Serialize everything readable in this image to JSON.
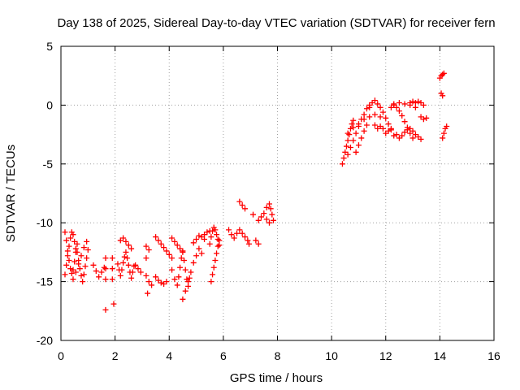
{
  "chart_data": {
    "type": "scatter",
    "title": "Day 138 of 2025, Sidereal Day-to-day VTEC variation (SDTVAR) for receiver fern",
    "xlabel": "GPS time / hours",
    "ylabel": "SDTVAR / TECUs",
    "xlim": [
      0,
      16
    ],
    "ylim": [
      -20,
      5
    ],
    "xticks": [
      "0",
      "2",
      "4",
      "6",
      "8",
      "10",
      "12",
      "14",
      "16"
    ],
    "yticks": [
      "5",
      "0",
      "-5",
      "-10",
      "-15",
      "-20"
    ],
    "grid": true,
    "marker": "+",
    "color": "#ff0000",
    "series": [
      {
        "points": [
          [
            0.15,
            -10.8
          ],
          [
            0.2,
            -11.5
          ],
          [
            0.25,
            -12.4
          ],
          [
            0.3,
            -13.2
          ],
          [
            0.35,
            -13.9
          ],
          [
            0.4,
            -14.3
          ],
          [
            0.45,
            -14.0
          ],
          [
            0.5,
            -13.3
          ],
          [
            0.55,
            -12.5
          ],
          [
            0.6,
            -11.8
          ],
          [
            0.15,
            -14.4
          ],
          [
            0.2,
            -13.6
          ],
          [
            0.25,
            -12.8
          ],
          [
            0.3,
            -12.0
          ],
          [
            0.35,
            -11.3
          ],
          [
            0.4,
            -10.8
          ],
          [
            0.45,
            -11.0
          ],
          [
            0.5,
            -11.6
          ],
          [
            0.55,
            -12.2
          ],
          [
            0.6,
            -12.5
          ],
          [
            0.65,
            -13.2
          ],
          [
            0.7,
            -13.9
          ],
          [
            0.75,
            -14.5
          ],
          [
            0.8,
            -15.0
          ],
          [
            0.85,
            -14.4
          ],
          [
            0.9,
            -13.7
          ],
          [
            0.95,
            -13.0
          ],
          [
            1.0,
            -12.3
          ],
          [
            0.45,
            -14.8
          ],
          [
            0.55,
            -14.2
          ],
          [
            0.65,
            -13.5
          ],
          [
            0.75,
            -12.8
          ],
          [
            0.85,
            -12.1
          ],
          [
            0.95,
            -11.6
          ],
          [
            1.2,
            -13.6
          ],
          [
            1.3,
            -14.1
          ],
          [
            1.4,
            -14.6
          ],
          [
            1.5,
            -14.2
          ],
          [
            1.6,
            -13.8
          ],
          [
            1.65,
            -13.0
          ],
          [
            1.65,
            -13.9
          ],
          [
            1.65,
            -14.8
          ],
          [
            1.9,
            -13.0
          ],
          [
            1.9,
            -13.9
          ],
          [
            1.9,
            -14.8
          ],
          [
            1.65,
            -17.4
          ],
          [
            1.95,
            -16.9
          ],
          [
            2.1,
            -13.5
          ],
          [
            2.15,
            -14.0
          ],
          [
            2.2,
            -14.5
          ],
          [
            2.25,
            -14.0
          ],
          [
            2.3,
            -13.4
          ],
          [
            2.35,
            -12.9
          ],
          [
            2.4,
            -12.5
          ],
          [
            2.45,
            -13.0
          ],
          [
            2.5,
            -13.6
          ],
          [
            2.55,
            -14.2
          ],
          [
            2.6,
            -14.7
          ],
          [
            2.65,
            -14.2
          ],
          [
            2.7,
            -13.7
          ],
          [
            2.2,
            -11.5
          ],
          [
            2.3,
            -11.3
          ],
          [
            2.4,
            -11.6
          ],
          [
            2.5,
            -11.9
          ],
          [
            2.6,
            -12.2
          ],
          [
            2.75,
            -13.6
          ],
          [
            2.85,
            -13.9
          ],
          [
            2.95,
            -14.2
          ],
          [
            3.15,
            -12.0
          ],
          [
            3.25,
            -12.3
          ],
          [
            3.15,
            -13.0
          ],
          [
            3.15,
            -14.5
          ],
          [
            3.25,
            -15.0
          ],
          [
            3.2,
            -16.0
          ],
          [
            3.35,
            -15.3
          ],
          [
            3.5,
            -11.2
          ],
          [
            3.6,
            -11.5
          ],
          [
            3.7,
            -11.8
          ],
          [
            3.8,
            -12.1
          ],
          [
            3.9,
            -12.4
          ],
          [
            4.0,
            -12.7
          ],
          [
            4.1,
            -13.0
          ],
          [
            3.5,
            -14.6
          ],
          [
            3.6,
            -14.9
          ],
          [
            3.7,
            -15.1
          ],
          [
            3.8,
            -15.2
          ],
          [
            3.9,
            -15.0
          ],
          [
            4.1,
            -14.0
          ],
          [
            4.2,
            -14.8
          ],
          [
            4.3,
            -15.3
          ],
          [
            4.35,
            -14.6
          ],
          [
            4.4,
            -13.8
          ],
          [
            4.45,
            -13.0
          ],
          [
            4.5,
            -12.4
          ],
          [
            4.55,
            -13.2
          ],
          [
            4.6,
            -14.0
          ],
          [
            4.65,
            -14.8
          ],
          [
            4.7,
            -15.4
          ],
          [
            4.75,
            -14.7
          ],
          [
            4.1,
            -11.3
          ],
          [
            4.2,
            -11.6
          ],
          [
            4.3,
            -11.9
          ],
          [
            4.4,
            -12.2
          ],
          [
            4.5,
            -12.5
          ],
          [
            4.5,
            -16.5
          ],
          [
            4.6,
            -15.8
          ],
          [
            4.7,
            -15.0
          ],
          [
            4.8,
            -14.2
          ],
          [
            4.9,
            -13.4
          ],
          [
            5.0,
            -12.8
          ],
          [
            5.1,
            -12.2
          ],
          [
            5.2,
            -12.6
          ],
          [
            4.9,
            -11.7
          ],
          [
            5.0,
            -11.4
          ],
          [
            5.1,
            -11.1
          ],
          [
            5.2,
            -11.2
          ],
          [
            5.3,
            -11.4
          ],
          [
            5.5,
            -11.8
          ],
          [
            5.55,
            -11.2
          ],
          [
            5.6,
            -10.7
          ],
          [
            5.65,
            -10.4
          ],
          [
            5.7,
            -10.6
          ],
          [
            5.75,
            -11.0
          ],
          [
            5.8,
            -11.4
          ],
          [
            5.85,
            -11.9
          ],
          [
            5.3,
            -11.0
          ],
          [
            5.4,
            -10.8
          ],
          [
            5.5,
            -10.7
          ],
          [
            5.55,
            -15.0
          ],
          [
            5.6,
            -14.4
          ],
          [
            5.65,
            -13.8
          ],
          [
            5.7,
            -13.2
          ],
          [
            5.75,
            -12.6
          ],
          [
            5.8,
            -12.0
          ],
          [
            5.85,
            -11.5
          ],
          [
            6.2,
            -10.6
          ],
          [
            6.3,
            -11.0
          ],
          [
            6.4,
            -11.3
          ],
          [
            6.5,
            -10.9
          ],
          [
            6.6,
            -10.6
          ],
          [
            6.7,
            -10.9
          ],
          [
            6.8,
            -11.2
          ],
          [
            6.9,
            -11.5
          ],
          [
            6.95,
            -11.8
          ],
          [
            6.6,
            -8.2
          ],
          [
            6.7,
            -8.5
          ],
          [
            6.8,
            -8.8
          ],
          [
            7.1,
            -9.3
          ],
          [
            7.3,
            -9.8
          ],
          [
            7.2,
            -11.5
          ],
          [
            7.3,
            -11.8
          ],
          [
            7.4,
            -9.5
          ],
          [
            7.5,
            -9.2
          ],
          [
            7.6,
            -8.7
          ],
          [
            7.7,
            -8.4
          ],
          [
            7.75,
            -8.8
          ],
          [
            7.8,
            -9.3
          ],
          [
            7.85,
            -9.8
          ],
          [
            7.6,
            -9.7
          ],
          [
            7.7,
            -10.0
          ]
        ]
      },
      {
        "points": [
          [
            10.4,
            -5.0
          ],
          [
            10.45,
            -4.5
          ],
          [
            10.5,
            -4.0
          ],
          [
            10.55,
            -3.5
          ],
          [
            10.6,
            -3.0
          ],
          [
            10.65,
            -2.5
          ],
          [
            10.7,
            -2.0
          ],
          [
            10.75,
            -1.6
          ],
          [
            10.8,
            -1.3
          ],
          [
            10.6,
            -4.2
          ],
          [
            10.7,
            -3.6
          ],
          [
            10.8,
            -3.0
          ],
          [
            10.9,
            -2.4
          ],
          [
            11.0,
            -1.8
          ],
          [
            11.1,
            -1.2
          ],
          [
            11.2,
            -0.8
          ],
          [
            11.3,
            -0.3
          ],
          [
            11.4,
            0.0
          ],
          [
            10.9,
            -4.0
          ],
          [
            11.0,
            -3.4
          ],
          [
            11.1,
            -2.8
          ],
          [
            11.2,
            -2.2
          ],
          [
            11.3,
            -1.7
          ],
          [
            10.6,
            -2.4
          ],
          [
            10.8,
            -1.9
          ],
          [
            11.0,
            -1.6
          ],
          [
            11.2,
            -1.2
          ],
          [
            11.4,
            -1.0
          ],
          [
            11.6,
            -0.8
          ],
          [
            11.8,
            -1.0
          ],
          [
            11.4,
            -0.2
          ],
          [
            11.5,
            0.2
          ],
          [
            11.6,
            0.4
          ],
          [
            11.7,
            0.1
          ],
          [
            11.8,
            -0.2
          ],
          [
            11.9,
            -0.6
          ],
          [
            12.0,
            -1.1
          ],
          [
            12.1,
            -1.6
          ],
          [
            12.2,
            -2.1
          ],
          [
            12.3,
            -2.6
          ],
          [
            11.9,
            -2.0
          ],
          [
            12.0,
            -2.4
          ],
          [
            12.1,
            -2.2
          ],
          [
            12.2,
            -2.0
          ],
          [
            11.6,
            -1.7
          ],
          [
            11.7,
            -2.0
          ],
          [
            11.8,
            -1.8
          ],
          [
            12.2,
            -0.2
          ],
          [
            12.3,
            0.0
          ],
          [
            12.4,
            -0.2
          ],
          [
            12.5,
            -0.5
          ],
          [
            12.6,
            -0.9
          ],
          [
            12.7,
            -1.4
          ],
          [
            12.8,
            -1.9
          ],
          [
            12.9,
            -2.4
          ],
          [
            13.0,
            -2.8
          ],
          [
            12.4,
            -2.5
          ],
          [
            12.5,
            -2.8
          ],
          [
            12.6,
            -2.6
          ],
          [
            12.7,
            -2.3
          ],
          [
            12.8,
            -2.1
          ],
          [
            12.9,
            -2.0
          ],
          [
            13.0,
            -2.2
          ],
          [
            13.1,
            -2.5
          ],
          [
            13.2,
            -2.7
          ],
          [
            13.3,
            -2.9
          ],
          [
            12.9,
            0.2
          ],
          [
            13.0,
            0.3
          ],
          [
            13.1,
            0.2
          ],
          [
            13.2,
            0.3
          ],
          [
            13.3,
            0.2
          ],
          [
            13.4,
            0.0
          ],
          [
            12.3,
            0.1
          ],
          [
            12.5,
            0.2
          ],
          [
            12.7,
            0.1
          ],
          [
            12.9,
            0.0
          ],
          [
            13.1,
            -0.2
          ],
          [
            13.3,
            -1.0
          ],
          [
            13.4,
            -1.2
          ],
          [
            13.5,
            -1.1
          ],
          [
            14.0,
            2.3
          ],
          [
            14.05,
            2.5
          ],
          [
            14.1,
            2.6
          ],
          [
            14.15,
            2.7
          ],
          [
            14.05,
            1.0
          ],
          [
            14.1,
            0.8
          ],
          [
            14.1,
            -2.8
          ],
          [
            14.15,
            -2.4
          ],
          [
            14.2,
            -2.0
          ],
          [
            14.25,
            -1.8
          ]
        ]
      }
    ]
  }
}
